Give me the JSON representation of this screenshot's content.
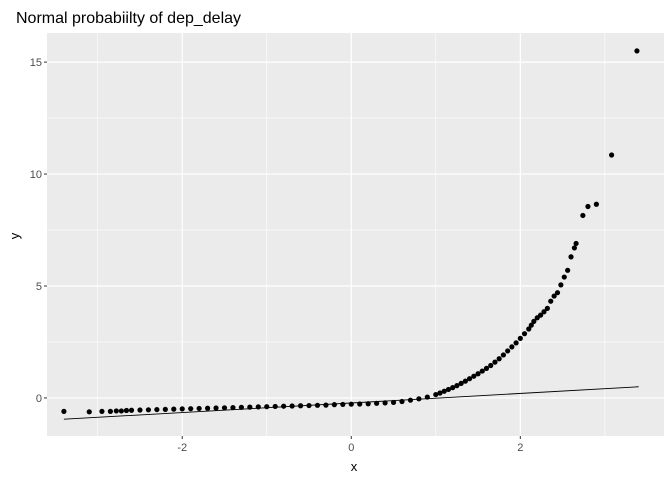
{
  "chart_data": {
    "type": "scatter",
    "title": "Normal probabiilty of dep_delay",
    "xlabel": "x",
    "ylabel": "y",
    "xlim": [
      -3.6,
      3.7
    ],
    "ylim": [
      -1.7,
      16.3
    ],
    "x_ticks": [
      -2,
      0,
      2
    ],
    "x_tick_labels": [
      "-2",
      "0",
      "2"
    ],
    "y_ticks": [
      0,
      5,
      10,
      15
    ],
    "y_tick_labels": [
      "0",
      "5",
      "10",
      "15"
    ],
    "grid": true,
    "panel_background": "#ebebeb",
    "grid_color": "#ffffff",
    "point_color": "#000000",
    "line_color": "#000000",
    "reference_line": {
      "x": [
        -3.4,
        3.4
      ],
      "y": [
        -0.95,
        0.5
      ]
    },
    "points": {
      "x": [
        -3.4,
        -3.1,
        -2.95,
        -2.85,
        -2.78,
        -2.72,
        -2.66,
        -2.6,
        -2.5,
        -2.4,
        -2.3,
        -2.2,
        -2.1,
        -2.0,
        -1.9,
        -1.8,
        -1.7,
        -1.6,
        -1.5,
        -1.4,
        -1.3,
        -1.2,
        -1.1,
        -1.0,
        -0.9,
        -0.8,
        -0.7,
        -0.6,
        -0.5,
        -0.4,
        -0.3,
        -0.2,
        -0.1,
        0.0,
        0.1,
        0.2,
        0.3,
        0.4,
        0.5,
        0.6,
        0.7,
        0.8,
        0.9,
        1.0,
        1.05,
        1.1,
        1.15,
        1.2,
        1.25,
        1.3,
        1.35,
        1.4,
        1.45,
        1.5,
        1.55,
        1.6,
        1.65,
        1.7,
        1.75,
        1.8,
        1.85,
        1.9,
        1.95,
        2.0,
        2.05,
        2.1,
        2.13,
        2.16,
        2.2,
        2.24,
        2.28,
        2.32,
        2.36,
        2.4,
        2.44,
        2.48,
        2.52,
        2.56,
        2.6,
        2.64,
        2.66,
        2.74,
        2.8,
        2.9,
        3.08,
        3.38
      ],
      "y": [
        -0.6,
        -0.62,
        -0.6,
        -0.6,
        -0.58,
        -0.58,
        -0.56,
        -0.55,
        -0.54,
        -0.53,
        -0.52,
        -0.51,
        -0.5,
        -0.49,
        -0.48,
        -0.47,
        -0.46,
        -0.45,
        -0.44,
        -0.43,
        -0.42,
        -0.41,
        -0.4,
        -0.39,
        -0.38,
        -0.37,
        -0.36,
        -0.35,
        -0.34,
        -0.33,
        -0.32,
        -0.3,
        -0.29,
        -0.28,
        -0.27,
        -0.26,
        -0.24,
        -0.22,
        -0.2,
        -0.16,
        -0.1,
        -0.04,
        0.04,
        0.15,
        0.22,
        0.3,
        0.38,
        0.46,
        0.55,
        0.65,
        0.75,
        0.86,
        0.97,
        1.08,
        1.2,
        1.32,
        1.45,
        1.6,
        1.75,
        1.92,
        2.1,
        2.28,
        2.46,
        2.66,
        2.87,
        3.08,
        3.25,
        3.42,
        3.58,
        3.7,
        3.85,
        4.0,
        4.32,
        4.55,
        4.7,
        5.05,
        5.4,
        5.7,
        6.3,
        6.7,
        6.9,
        8.15,
        8.55,
        8.65,
        10.85,
        15.5
      ]
    }
  }
}
